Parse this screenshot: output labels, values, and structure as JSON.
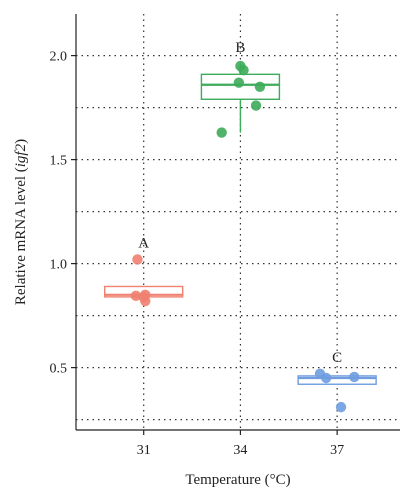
{
  "chart_data": {
    "type": "box-scatter",
    "xlabel": "Temperature (°C)",
    "ylabel_prefix": "Relative mRNA level (",
    "ylabel_italic": "igf2",
    "ylabel_suffix": ")",
    "categories": [
      "31",
      "34",
      "37"
    ],
    "ylim": [
      0.2,
      2.2
    ],
    "yticks": [
      0.5,
      1.0,
      1.5,
      2.0
    ],
    "ytick_labels": [
      "0.5",
      "1.0",
      "1.5",
      "2.0"
    ],
    "grid": "dotted",
    "groups": [
      {
        "category": "31",
        "letter": "A",
        "color": "#f08070",
        "box": {
          "q1": 0.84,
          "median": 0.85,
          "q3": 0.89,
          "whisker_low": 0.84,
          "whisker_high": 0.89
        },
        "points": [
          1.02,
          0.85,
          0.845,
          0.84,
          0.82
        ]
      },
      {
        "category": "34",
        "letter": "B",
        "color": "#3cab5a",
        "box": {
          "q1": 1.79,
          "median": 1.86,
          "q3": 1.91,
          "whisker_low": 1.63,
          "whisker_high": 1.96
        },
        "points": [
          1.95,
          1.93,
          1.87,
          1.85,
          1.76,
          1.63
        ]
      },
      {
        "category": "37",
        "letter": "C",
        "color": "#6f9de0",
        "box": {
          "q1": 0.42,
          "median": 0.45,
          "q3": 0.46,
          "whisker_low": 0.42,
          "whisker_high": 0.46
        },
        "points": [
          0.47,
          0.45,
          0.455,
          0.31
        ]
      }
    ]
  }
}
